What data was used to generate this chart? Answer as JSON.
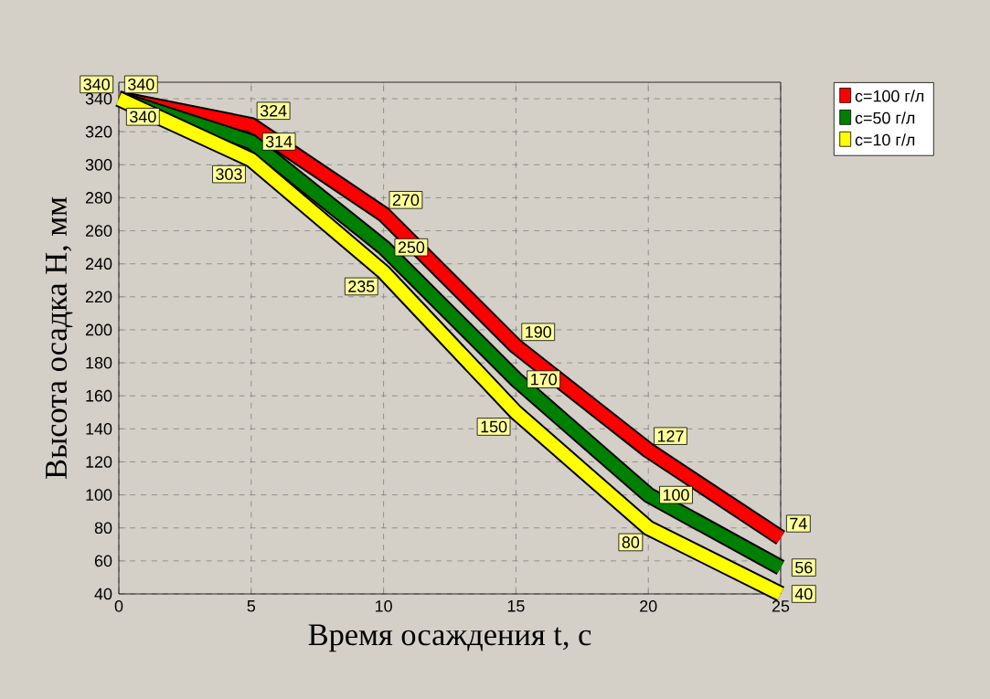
{
  "chart_data": {
    "type": "line",
    "xlabel": "Время осаждения t, с",
    "ylabel": "Высота осадка H, мм",
    "x": [
      0,
      5,
      10,
      15,
      20,
      25
    ],
    "series": [
      {
        "name": "c=100 г/л",
        "color": "#ff0000",
        "values": [
          340,
          324,
          270,
          190,
          127,
          74
        ]
      },
      {
        "name": "c=50 г/л",
        "color": "#008000",
        "values": [
          340,
          314,
          250,
          170,
          100,
          56
        ]
      },
      {
        "name": "c=10 г/л",
        "color": "#ffff00",
        "values": [
          340,
          303,
          235,
          150,
          80,
          40
        ]
      }
    ],
    "xlim": [
      0,
      25
    ],
    "xticks": [
      0,
      5,
      10,
      15,
      20,
      25
    ],
    "ylim": [
      40,
      350
    ],
    "yticks": [
      40,
      60,
      80,
      100,
      120,
      140,
      160,
      180,
      200,
      220,
      240,
      260,
      280,
      300,
      320,
      340
    ],
    "grid": true,
    "legend": "top right",
    "data_labels": true,
    "marker": "none",
    "line_style": "solid"
  }
}
